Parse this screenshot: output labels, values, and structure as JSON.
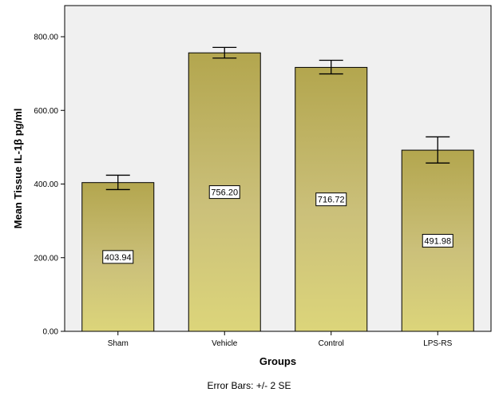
{
  "chart_data": {
    "type": "bar",
    "categories": [
      "Sham",
      "Vehicle",
      "Control",
      "LPS-RS"
    ],
    "values": [
      403.94,
      756.2,
      716.72,
      491.98
    ],
    "value_labels": [
      "403.94",
      "756.20",
      "716.72",
      "491.98"
    ],
    "error_bars": {
      "lower": [
        385,
        742,
        699,
        457
      ],
      "upper": [
        424,
        771,
        736,
        528
      ]
    },
    "xlabel": "Groups",
    "ylabel": "Mean Tissue IL-1β pg/ml",
    "ylim": [
      0,
      860
    ],
    "yticks": [
      0,
      200,
      400,
      600,
      800
    ],
    "ytick_labels": [
      "0.00",
      "200.00",
      "400.00",
      "600.00",
      "800.00"
    ],
    "footnote": "Error Bars: +/- 2 SE",
    "grid": false,
    "colors": {
      "plot_background": "#F0F0F0",
      "bar_top": "#B3A64E",
      "bar_bottom": "#DCD57A",
      "bar_stroke": "#000000"
    }
  }
}
